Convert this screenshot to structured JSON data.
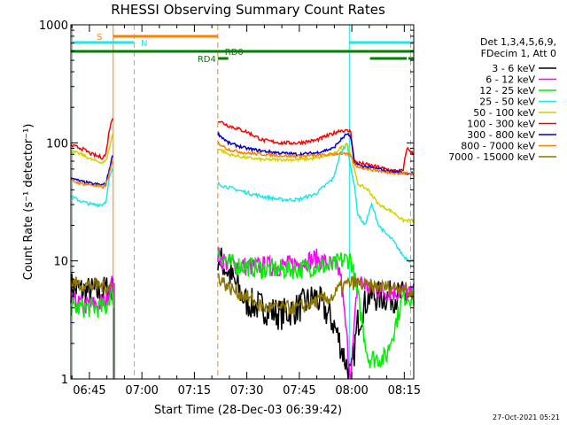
{
  "chart_data": {
    "type": "line",
    "title": "RHESSI Observing Summary Count Rates",
    "xlabel": "Start Time (28-Dec-03 06:39:42)",
    "ylabel": "Count Rate (s⁻¹ detector⁻¹)",
    "footer": "27-Oct-2021 05:21",
    "x_unit": "minutes after 06:39:42",
    "xlim": [
      0,
      98
    ],
    "ylim": [
      1,
      1000
    ],
    "yscale": "log",
    "yticks": [
      1,
      10,
      100,
      1000
    ],
    "ytick_labels": [
      "1",
      "10",
      "100",
      "1000"
    ],
    "xticks": [
      5.3,
      20.3,
      35.3,
      50.3,
      65.3,
      80.3,
      95.3
    ],
    "xtick_labels": [
      "06:45",
      "07:00",
      "07:15",
      "07:30",
      "07:45",
      "08:00",
      "08:15"
    ],
    "legend": {
      "position": "right",
      "header": [
        "Det 1,3,4,5,6,9,",
        "FDecim 1, Att 0"
      ],
      "entries": [
        {
          "label": "3 - 6 keV",
          "color": "#000000"
        },
        {
          "label": "6 - 12 keV",
          "color": "#ff00ff"
        },
        {
          "label": "12 - 25 keV",
          "color": "#00ee00"
        },
        {
          "label": "25 - 50 keV",
          "color": "#22e5e5"
        },
        {
          "label": "50 - 100 keV",
          "color": "#d2d200"
        },
        {
          "label": "100 - 300 keV",
          "color": "#ff0000"
        },
        {
          "label": "300 - 800 keV",
          "color": "#0000cc"
        },
        {
          "label": "800 - 7000 keV",
          "color": "#ff8000"
        },
        {
          "label": "7000 - 15000 keV",
          "color": "#8b7500"
        }
      ]
    },
    "segments": [
      [
        0,
        12
      ],
      [
        42,
        98
      ]
    ],
    "series": [
      {
        "name": "3 - 6 keV",
        "color": "#000000",
        "points": [
          [
            0,
            6
          ],
          [
            4,
            5.5
          ],
          [
            8,
            5.4
          ],
          [
            10,
            5.6
          ],
          [
            11,
            6
          ],
          [
            12,
            5.5
          ],
          [
            42,
            11
          ],
          [
            45,
            8
          ],
          [
            50,
            4.5
          ],
          [
            55,
            4
          ],
          [
            60,
            3.5
          ],
          [
            65,
            4
          ],
          [
            70,
            5
          ],
          [
            75,
            3
          ],
          [
            77,
            2
          ],
          [
            80,
            1
          ],
          [
            82,
            3
          ],
          [
            85,
            5
          ],
          [
            90,
            5
          ],
          [
            95,
            5
          ],
          [
            98,
            5
          ]
        ]
      },
      {
        "name": "6 - 12 keV",
        "color": "#ff00ff",
        "points": [
          [
            0,
            4.5
          ],
          [
            4,
            4.2
          ],
          [
            8,
            4.3
          ],
          [
            10,
            4.5
          ],
          [
            11,
            6
          ],
          [
            12,
            6.5
          ],
          [
            42,
            11
          ],
          [
            45,
            9.5
          ],
          [
            50,
            9
          ],
          [
            55,
            9
          ],
          [
            60,
            9
          ],
          [
            65,
            9.5
          ],
          [
            70,
            10.5
          ],
          [
            75,
            9
          ],
          [
            77,
            8
          ],
          [
            80,
            1
          ],
          [
            82,
            7
          ],
          [
            85,
            6
          ],
          [
            90,
            5.5
          ],
          [
            95,
            5.5
          ],
          [
            98,
            5
          ]
        ]
      },
      {
        "name": "12 - 25 keV",
        "color": "#00ee00",
        "points": [
          [
            0,
            4
          ],
          [
            4,
            4
          ],
          [
            8,
            4
          ],
          [
            10,
            4
          ],
          [
            11,
            5
          ],
          [
            12,
            5
          ],
          [
            42,
            12
          ],
          [
            45,
            9.5
          ],
          [
            50,
            9
          ],
          [
            55,
            8.5
          ],
          [
            60,
            8.5
          ],
          [
            65,
            8.5
          ],
          [
            70,
            9
          ],
          [
            75,
            9
          ],
          [
            77,
            10
          ],
          [
            80,
            10.5
          ],
          [
            82,
            5
          ],
          [
            85,
            1.5
          ],
          [
            90,
            1.5
          ],
          [
            95,
            5
          ],
          [
            98,
            5
          ]
        ]
      },
      {
        "name": "25 - 50 keV",
        "color": "#22e5e5",
        "points": [
          [
            0,
            35
          ],
          [
            3,
            32
          ],
          [
            6,
            30
          ],
          [
            9,
            30
          ],
          [
            10,
            32
          ],
          [
            11,
            50
          ],
          [
            12,
            60
          ],
          [
            42,
            45
          ],
          [
            45,
            42
          ],
          [
            50,
            38
          ],
          [
            55,
            35
          ],
          [
            60,
            33
          ],
          [
            65,
            33
          ],
          [
            70,
            37
          ],
          [
            75,
            50
          ],
          [
            77,
            80
          ],
          [
            79,
            100
          ],
          [
            80,
            60
          ],
          [
            81,
            45
          ],
          [
            82,
            25
          ],
          [
            84,
            20
          ],
          [
            86,
            30
          ],
          [
            88,
            20
          ],
          [
            90,
            17
          ],
          [
            92,
            15
          ],
          [
            95,
            11
          ],
          [
            97,
            10
          ],
          [
            98,
            10
          ]
        ]
      },
      {
        "name": "50 - 100 keV",
        "color": "#d2d200",
        "points": [
          [
            0,
            85
          ],
          [
            3,
            80
          ],
          [
            6,
            72
          ],
          [
            9,
            68
          ],
          [
            10,
            70
          ],
          [
            11,
            90
          ],
          [
            12,
            120
          ],
          [
            42,
            90
          ],
          [
            45,
            80
          ],
          [
            50,
            75
          ],
          [
            55,
            72
          ],
          [
            60,
            72
          ],
          [
            65,
            72
          ],
          [
            70,
            74
          ],
          [
            75,
            80
          ],
          [
            77,
            90
          ],
          [
            79,
            100
          ],
          [
            80,
            80
          ],
          [
            81,
            60
          ],
          [
            82,
            45
          ],
          [
            85,
            40
          ],
          [
            88,
            30
          ],
          [
            90,
            28
          ],
          [
            92,
            26
          ],
          [
            95,
            22
          ],
          [
            98,
            22
          ]
        ]
      },
      {
        "name": "100 - 300 keV",
        "color": "#ff0000",
        "points": [
          [
            0,
            95
          ],
          [
            3,
            90
          ],
          [
            6,
            80
          ],
          [
            9,
            75
          ],
          [
            10,
            80
          ],
          [
            11,
            130
          ],
          [
            12,
            165
          ],
          [
            42,
            155
          ],
          [
            45,
            140
          ],
          [
            50,
            125
          ],
          [
            55,
            105
          ],
          [
            60,
            100
          ],
          [
            65,
            100
          ],
          [
            70,
            105
          ],
          [
            75,
            120
          ],
          [
            77,
            128
          ],
          [
            80,
            125
          ],
          [
            81,
            70
          ],
          [
            82,
            68
          ],
          [
            85,
            65
          ],
          [
            88,
            62
          ],
          [
            90,
            60
          ],
          [
            92,
            58
          ],
          [
            95,
            58
          ],
          [
            96,
            90
          ],
          [
            97,
            85
          ],
          [
            98,
            80
          ]
        ]
      },
      {
        "name": "300 - 800 keV",
        "color": "#0000cc",
        "points": [
          [
            0,
            50
          ],
          [
            3,
            47
          ],
          [
            6,
            45
          ],
          [
            9,
            44
          ],
          [
            10,
            45
          ],
          [
            11,
            60
          ],
          [
            12,
            80
          ],
          [
            42,
            120
          ],
          [
            45,
            100
          ],
          [
            50,
            90
          ],
          [
            55,
            85
          ],
          [
            60,
            82
          ],
          [
            65,
            80
          ],
          [
            70,
            82
          ],
          [
            75,
            90
          ],
          [
            77,
            105
          ],
          [
            79,
            120
          ],
          [
            80,
            110
          ],
          [
            81,
            68
          ],
          [
            82,
            65
          ],
          [
            85,
            62
          ],
          [
            88,
            60
          ],
          [
            90,
            58
          ],
          [
            92,
            57
          ],
          [
            95,
            56
          ],
          [
            98,
            55
          ]
        ]
      },
      {
        "name": "800 - 7000 keV",
        "color": "#ff8000",
        "points": [
          [
            0,
            48
          ],
          [
            3,
            45
          ],
          [
            6,
            44
          ],
          [
            9,
            42
          ],
          [
            10,
            44
          ],
          [
            11,
            55
          ],
          [
            12,
            70
          ],
          [
            42,
            100
          ],
          [
            45,
            88
          ],
          [
            50,
            82
          ],
          [
            55,
            80
          ],
          [
            60,
            78
          ],
          [
            65,
            77
          ],
          [
            70,
            78
          ],
          [
            75,
            80
          ],
          [
            77,
            82
          ],
          [
            80,
            78
          ],
          [
            81,
            66
          ],
          [
            82,
            63
          ],
          [
            85,
            60
          ],
          [
            88,
            58
          ],
          [
            90,
            56
          ],
          [
            92,
            56
          ],
          [
            95,
            55
          ],
          [
            98,
            55
          ]
        ]
      },
      {
        "name": "7000 - 15000 keV",
        "color": "#8b7500",
        "points": [
          [
            0,
            6.5
          ],
          [
            4,
            6.3
          ],
          [
            8,
            6.2
          ],
          [
            10,
            6
          ],
          [
            11,
            6.2
          ],
          [
            12,
            6
          ],
          [
            42,
            7.5
          ],
          [
            45,
            6
          ],
          [
            50,
            5
          ],
          [
            55,
            4
          ],
          [
            60,
            4
          ],
          [
            65,
            4
          ],
          [
            70,
            4.5
          ],
          [
            75,
            5
          ],
          [
            77,
            6
          ],
          [
            80,
            6.5
          ],
          [
            82,
            6.5
          ],
          [
            85,
            6
          ],
          [
            90,
            6
          ],
          [
            95,
            6
          ],
          [
            98,
            5
          ]
        ]
      }
    ],
    "spikes": [
      {
        "color": "#000000",
        "x": 12.3,
        "values": [
          4,
          1
        ]
      },
      {
        "color": "#ff00ff",
        "x": 12.4,
        "values": [
          6.5,
          1
        ]
      },
      {
        "color": "#00ee00",
        "x": 12.5,
        "values": [
          5,
          1
        ]
      }
    ],
    "vlines": [
      {
        "x": 0.4,
        "style": "solid",
        "color": "#22e5e5"
      },
      {
        "x": 12.1,
        "style": "solid",
        "color": "#ff8000"
      },
      {
        "x": 18.1,
        "style": "dashed",
        "color": "#22e5e5"
      },
      {
        "x": 42.0,
        "style": "dashed",
        "color": "#ff8000"
      },
      {
        "x": 79.6,
        "style": "solid",
        "color": "#22e5e5"
      },
      {
        "x": 97.1,
        "style": "dashed",
        "color": "#22e5e5"
      }
    ],
    "flags": [
      {
        "label": "S",
        "label_x": 9.0,
        "label_side": "left",
        "color": "#ff8000",
        "y_level": 0,
        "intervals": [
          [
            12.1,
            42.0
          ]
        ]
      },
      {
        "label": "N",
        "label_x": 20.0,
        "label_side": "right",
        "color": "#22e5e5",
        "y_level": 1,
        "intervals": [
          [
            0.4,
            18.1
          ],
          [
            79.6,
            98
          ]
        ]
      },
      {
        "label": "RD0",
        "label_x": 44.0,
        "label_side": "right",
        "color": "#008000",
        "y_level": 2,
        "intervals": [
          [
            0,
            85.5
          ],
          [
            85.5,
            98
          ]
        ]
      },
      {
        "label": "RD4",
        "label_x": 41.5,
        "label_side": "left",
        "color": "#008000",
        "y_level": 3,
        "intervals": [
          [
            42.0,
            45.0
          ],
          [
            85.5,
            96.0
          ],
          [
            96.5,
            98
          ]
        ]
      }
    ]
  }
}
